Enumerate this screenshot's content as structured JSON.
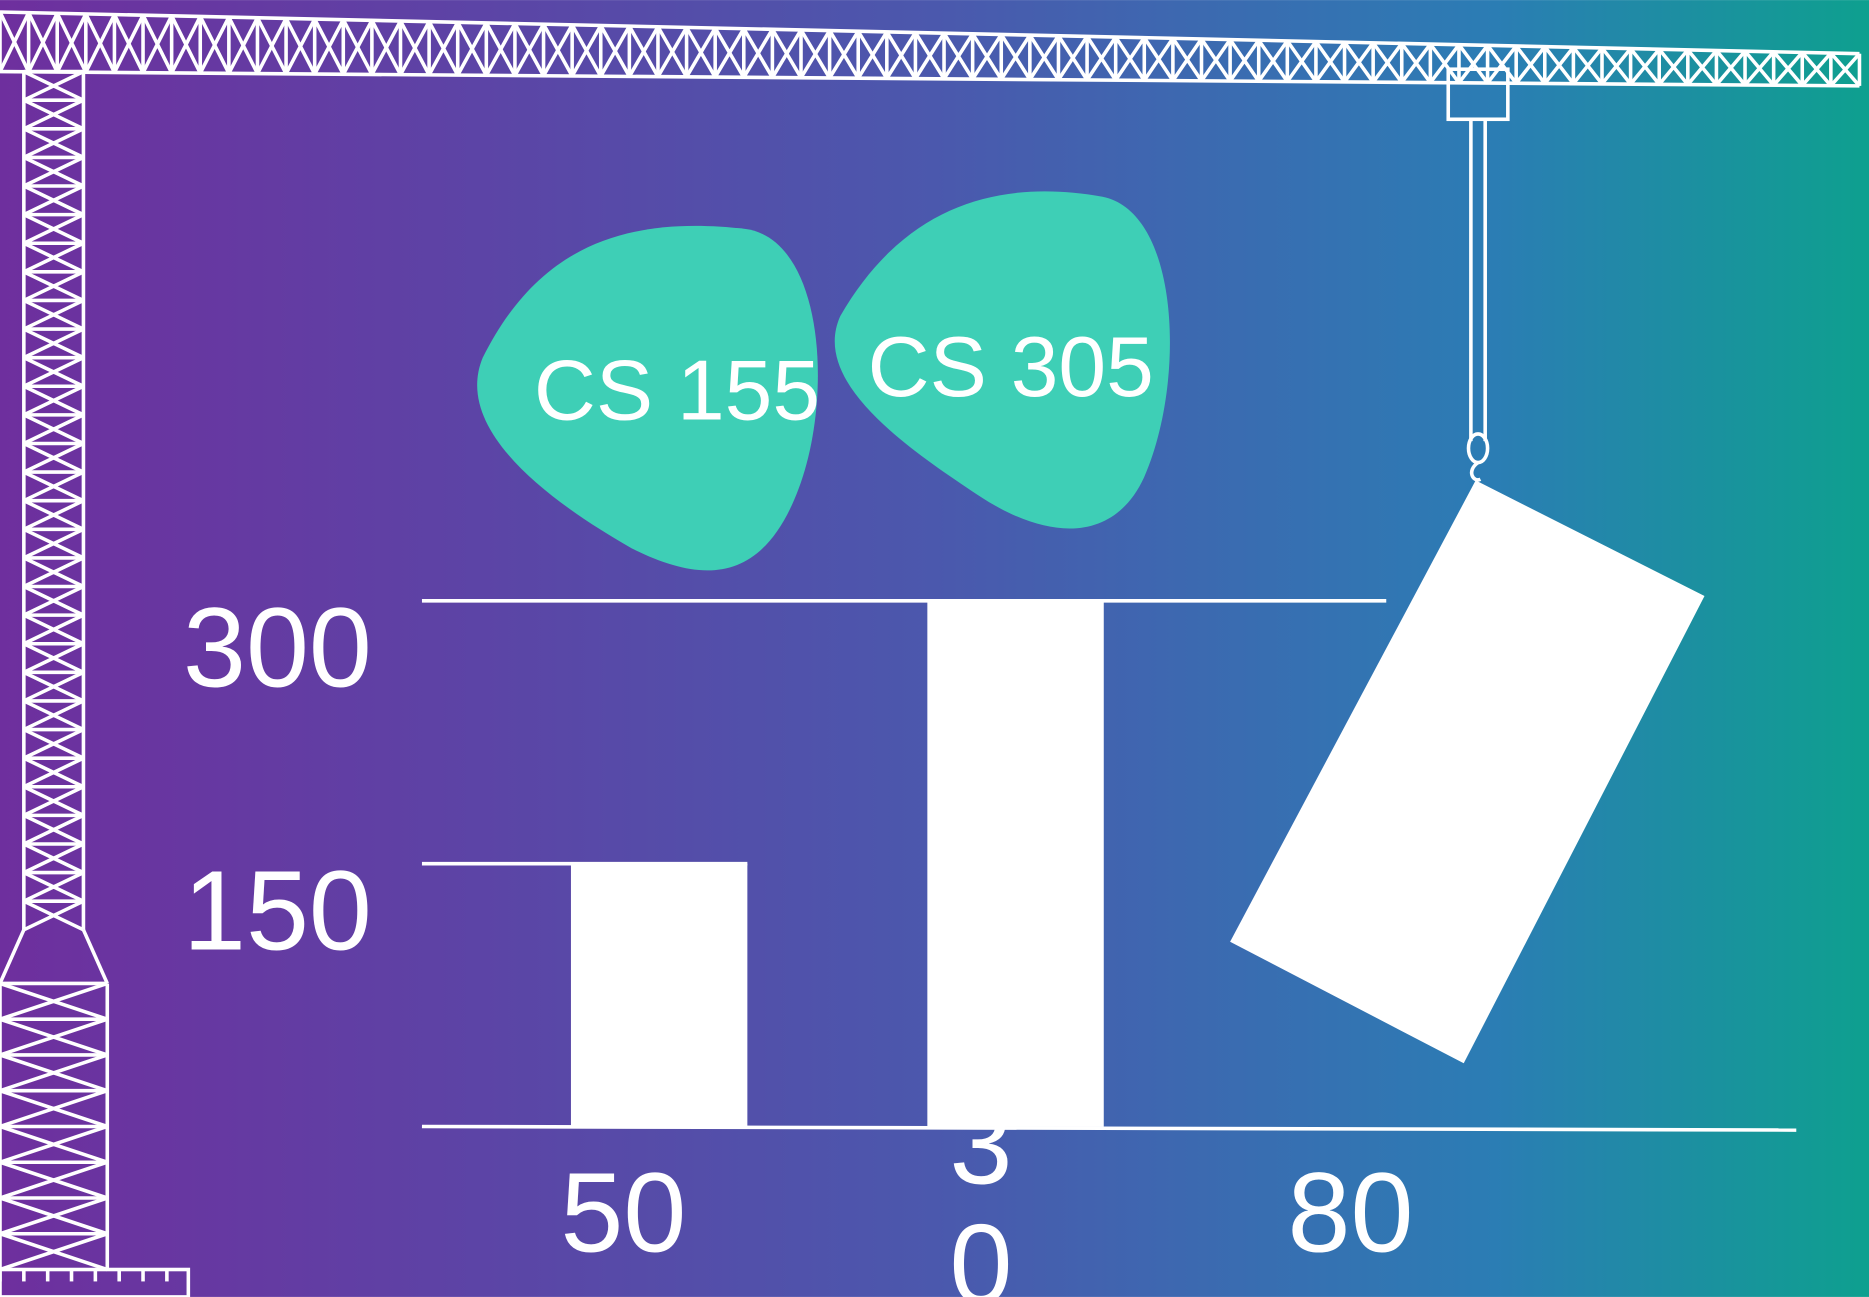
{
  "chart_data": {
    "type": "bar",
    "categories": [
      "50",
      "30",
      "80"
    ],
    "values": [
      150,
      300,
      null
    ],
    "color": "#ffffff",
    "ylim": [
      0,
      300
    ],
    "yticks": [
      150,
      300
    ],
    "grid": true,
    "annotations": [
      "CS 155",
      "CS 305"
    ]
  }
}
